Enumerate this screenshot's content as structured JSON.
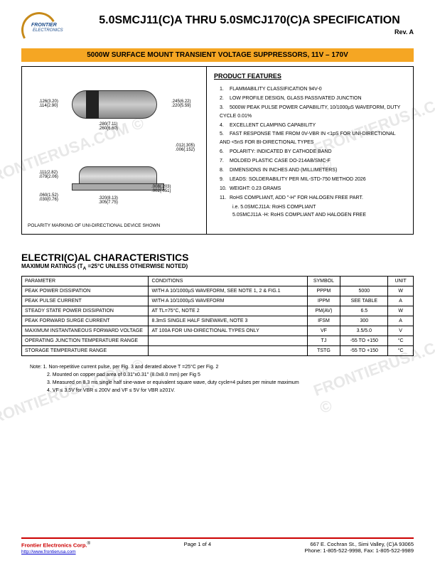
{
  "header": {
    "logo_name": "FRONTIER",
    "logo_sub": "ELECTRONICS",
    "title": "5.0SMCJ11(C)A THRU 5.0SMCJ170(C)A SPECIFICATION",
    "rev": "Rev. A"
  },
  "banner": "5000W SURFACE MOUNT TRANSIENT VOLTAGE SUPPRESSORS, 11V – 170V",
  "diagram": {
    "dim_a": ".126(3.20)",
    "dim_a2": ".114(2.90)",
    "dim_b": ".245(6.22)",
    "dim_b2": ".220(5.59)",
    "dim_c": ".280(7.11)",
    "dim_c2": ".260(6.60)",
    "dim_d": ".012(.305)",
    "dim_d2": ".006(.152)",
    "dim_e": ".111(2.82)",
    "dim_e2": ".079(2.06)",
    "dim_f": ".060(1.52)",
    "dim_f2": ".030(0.76)",
    "dim_g": ".008(.203)",
    "dim_g2": ".002(.051)",
    "dim_h": ".320(8.13)",
    "dim_h2": ".305(7.75)",
    "polarity_note": "POLARITY MARKING OF UNI-DIRECTIONAL DEVICE SHOWN"
  },
  "features": {
    "title": "PRODUCT FEATURES",
    "items": [
      "FLAMMABILITY CLASSIFICATION 94V-0",
      "LOW PROFILE DESIGN, GLASS PASSIVATED JUNCTION",
      "5000W PEAK PULSE POWER CAPABILITY, 10/1000µS WAVEFORM, DUTY CYCLE 0.01%",
      "EXCELLENT CLAMPING CAPABILITY",
      "FAST RESPONSE TIME FROM 0V-VBR IN <1pS FOR UNI-DIRECTIONAL AND <5nS FOR BI-DIRECTIONAL TYPES",
      "POLARITY: INDICATED BY CATHODE BAND",
      "MOLDED PLASTIC CASE DO-214AB/SMC-F",
      "DIMENSIONS IN INCHES AND (MILLIMETERS)",
      "LEADS: SOLDERABILITY PER MIL-STD-750 METHOD 2026",
      "WEIGHT: 0.23 GRAMS",
      "RoHS COMPLIANT,    ADD \"-H\" FOR HALOGEN FREE PART."
    ],
    "sub1": "i.e. 5.0SMCJ11A: RoHS COMPLIANT",
    "sub2": "5.0SMCJ11A -H: RoHS COMPLIANT AND HALOGEN FREE"
  },
  "elec": {
    "title": "ELECTRI(C)AL CHARACTERISTICS",
    "subtitle": "MAXIMUM RATINGS (T",
    "subtitle_sub": "A",
    "subtitle2": " =25°C UNLESS OTHERWISE NOTED)",
    "columns": [
      "PARAMETER",
      "CONDITIONS",
      "SYMBOL",
      "",
      "UNIT"
    ],
    "rows": [
      [
        "PEAK POWER DISSIPATION",
        "WITH A 10/1000µS WAVEFORM, SEE NOTE 1, 2 & FIG.1",
        "PPPM",
        "5000",
        "W"
      ],
      [
        "PEAK PULSE CURRENT",
        "WITH A 10/1000µS WAVEFORM",
        "IPPM",
        "SEE TABLE",
        "A"
      ],
      [
        "STEADY STATE POWER DISSIPATION",
        "AT TL=75°C, NOTE 2",
        "PM(AV)",
        "6.5",
        "W"
      ],
      [
        "PEAK FORWARD SURGE CURRENT",
        "8.3mS SINGLE HALF SINEWAVE, NOTE 3",
        "IFSM",
        "300",
        "A"
      ],
      [
        "MAXIMUM INSTANTANEOUS FORWARD VOLTAGE",
        "AT 100A FOR UNI-DIRECTIONAL TYPES ONLY",
        "VF",
        "3.5/5.0",
        "V"
      ],
      [
        "OPERATING JUNCTION TEMPERATURE RANGE",
        "",
        "TJ",
        "-55 TO +150",
        "°C"
      ],
      [
        "STORAGE TEMPERATURE RANGE",
        "",
        "TSTG",
        "-55 TO +150",
        "°C"
      ]
    ]
  },
  "notes": [
    "Note: 1. Non-repetitive current pulse, per Fig. 3 and derated above T =25°C per Fig. 2",
    "2. Mounted on copper pad area of 0.31\"x0.31\" (8.0x8.0 mm) per Fig 5",
    "3. Measured on 8.3 ms single half sine-wave or equivalent square wave, duty cycle=4 pulses per minute maximum",
    "4. VF ≤ 3.5V for VBR  ≤ 200V and VF ≤ 5V for VBR  ≥201V."
  ],
  "footer": {
    "company": "Frontier Electronics Corp.",
    "reg": "®",
    "url": "http://www.frontierusa.com",
    "page": "Page 1 of 4",
    "addr1": "667 E. Cochran St., Simi Valley, (C)A 93065",
    "addr2": "Phone: 1-805-522-9998, Fax: 1-805-522-9989"
  },
  "colors": {
    "banner_bg": "#f5a623",
    "logo_arc": "#c78a1a",
    "footer_red": "#c00000"
  }
}
